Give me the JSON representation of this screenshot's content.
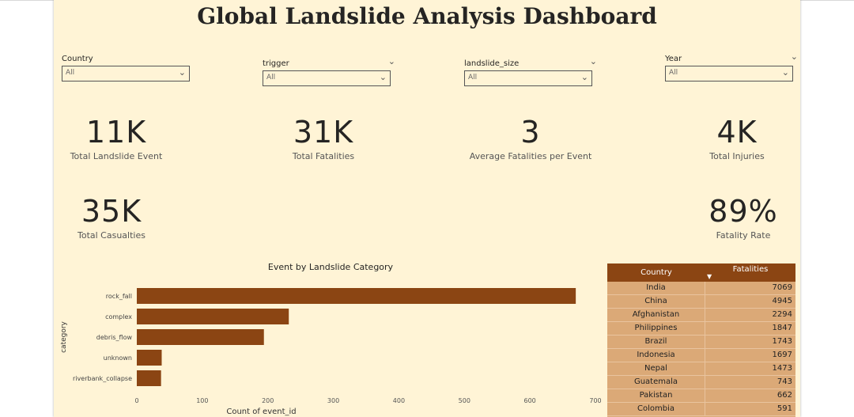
{
  "title": "Global Landslide Analysis Dashboard",
  "slicers": [
    {
      "label": "Country",
      "value": "All"
    },
    {
      "label": "trigger",
      "value": "All"
    },
    {
      "label": "landslide_size",
      "value": "All"
    },
    {
      "label": "Year",
      "value": "All"
    }
  ],
  "kpis": [
    {
      "value": "11K",
      "label": "Total Landslide Event"
    },
    {
      "value": "31K",
      "label": "Total Fatalities"
    },
    {
      "value": "3",
      "label": "Average Fatalities per Event"
    },
    {
      "value": "4K",
      "label": "Total Injuries"
    },
    {
      "value": "35K",
      "label": "Total Casualties"
    },
    {
      "value": "89%",
      "label": "Fatality Rate"
    }
  ],
  "chart_data": {
    "type": "bar",
    "orientation": "horizontal",
    "title": "Event by Landslide Category",
    "xlabel": "Count of event_id",
    "ylabel": "category",
    "categories": [
      "rock_fall",
      "complex",
      "debris_flow",
      "unknown",
      "riverbank_collapse"
    ],
    "values": [
      670,
      232,
      194,
      38,
      37
    ],
    "xlim": [
      0,
      700
    ],
    "xticks": [
      0,
      100,
      200,
      300,
      400,
      500,
      600,
      700
    ],
    "bar_color": "#8b4513",
    "grid": false
  },
  "table": {
    "columns": [
      "Country",
      "Fatalities"
    ],
    "sort_column": "Fatalities",
    "rows": [
      [
        "India",
        "7069"
      ],
      [
        "China",
        "4945"
      ],
      [
        "Afghanistan",
        "2294"
      ],
      [
        "Philippines",
        "1847"
      ],
      [
        "Brazil",
        "1743"
      ],
      [
        "Indonesia",
        "1697"
      ],
      [
        "Nepal",
        "1473"
      ],
      [
        "Guatemala",
        "743"
      ],
      [
        "Pakistan",
        "662"
      ],
      [
        "Colombia",
        "591"
      ]
    ]
  },
  "colors": {
    "background": "#fff4d6",
    "accent": "#8b4513",
    "table_body": "#dba977"
  }
}
